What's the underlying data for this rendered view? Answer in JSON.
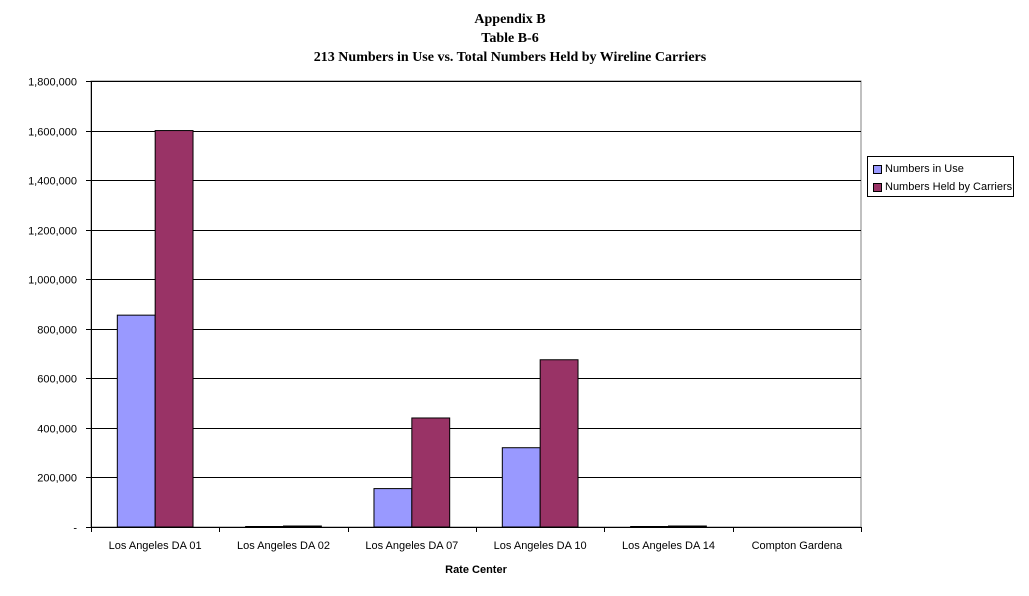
{
  "title_lines": [
    "Appendix B",
    "Table B-6",
    "213 Numbers in Use vs. Total Numbers Held by Wireline Carriers"
  ],
  "colors": {
    "series1": "#9999ff",
    "series2": "#993366",
    "gridline": "#000000",
    "plot_bg": "#ffffff"
  },
  "chart_data": {
    "type": "bar",
    "title": "213 Numbers in Use vs. Total Numbers Held by Wireline Carriers",
    "xlabel": "Rate Center",
    "ylabel": "",
    "categories": [
      "Los Angeles DA 01",
      "Los Angeles DA 02",
      "Los Angeles DA 07",
      "Los Angeles DA 10",
      "Los Angeles DA 14",
      "Compton Gardena"
    ],
    "series": [
      {
        "name": "Numbers in Use",
        "values": [
          855000,
          2000,
          155000,
          320000,
          2000,
          0
        ]
      },
      {
        "name": "Numbers Held by Carriers",
        "values": [
          1600000,
          4000,
          440000,
          675000,
          4000,
          0
        ]
      }
    ],
    "ylim": [
      0,
      1800000
    ],
    "yticks": [
      0,
      200000,
      400000,
      600000,
      800000,
      1000000,
      1200000,
      1400000,
      1600000,
      1800000
    ],
    "ytick_labels": [
      "-",
      "200,000",
      "400,000",
      "600,000",
      "800,000",
      "1,000,000",
      "1,200,000",
      "1,400,000",
      "1,600,000",
      "1,800,000"
    ],
    "grid": true,
    "legend_position": "right"
  }
}
